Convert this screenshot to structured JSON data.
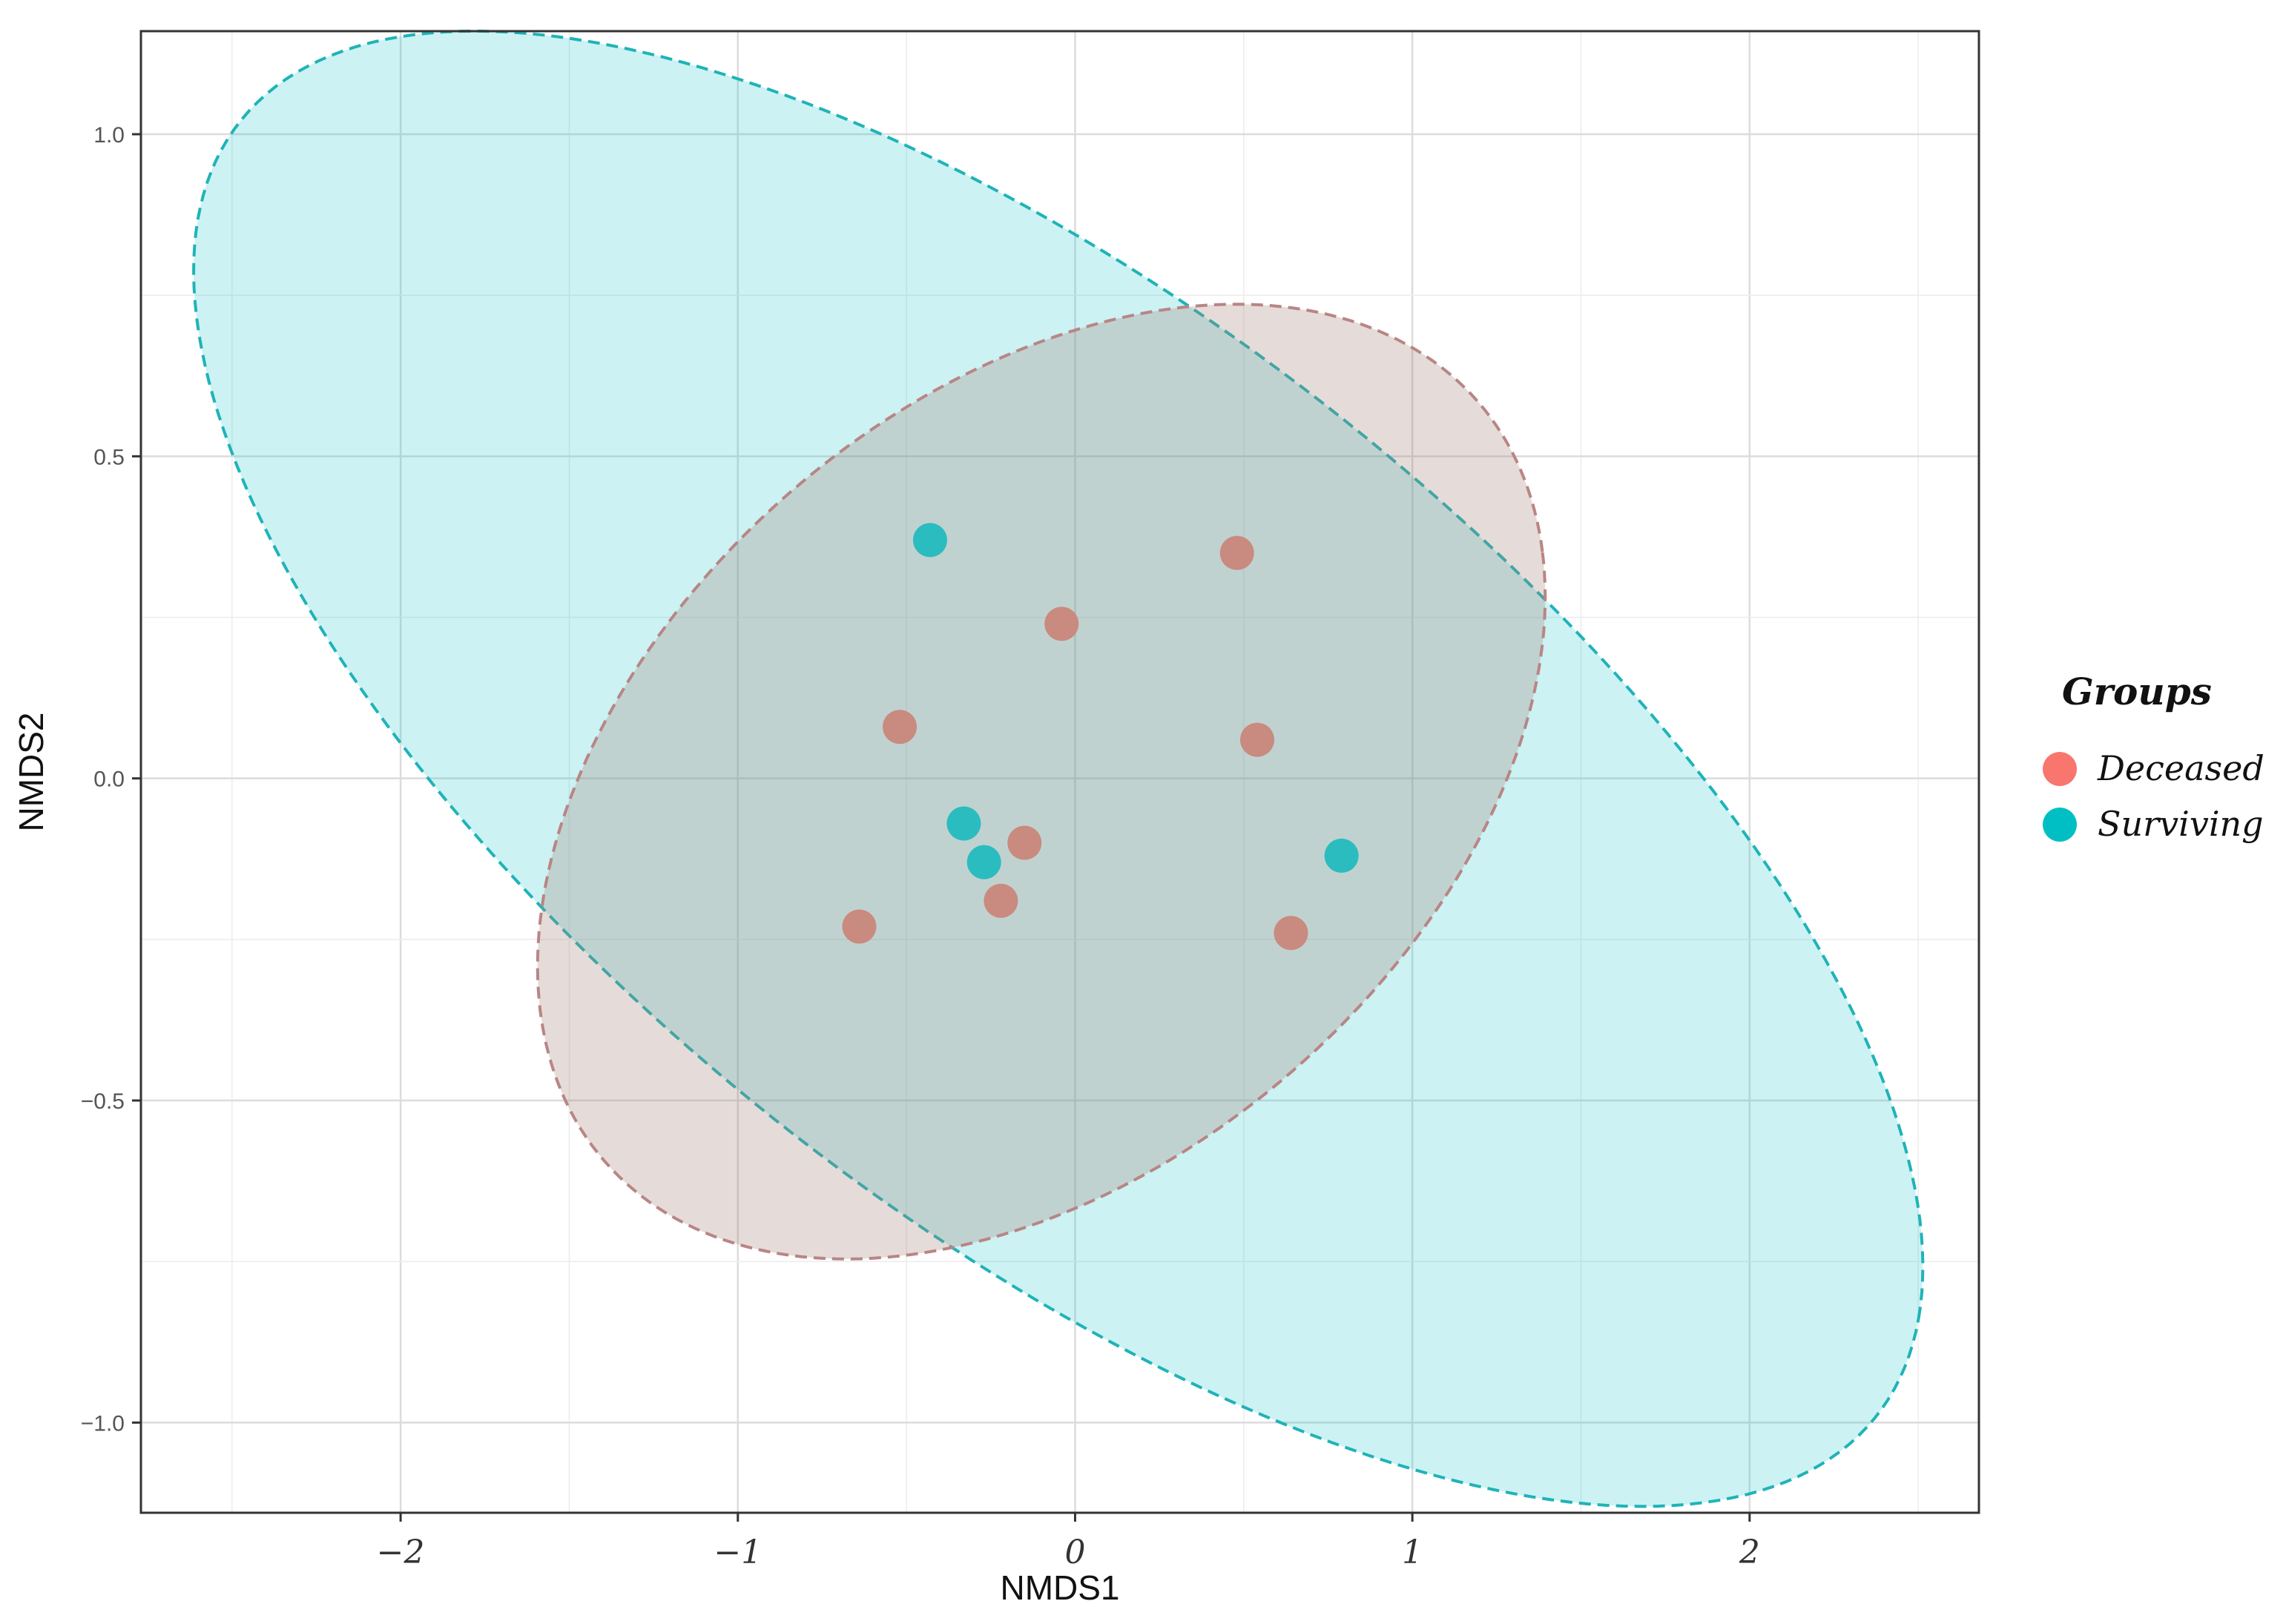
{
  "chart_data": {
    "type": "scatter",
    "title": "",
    "xlabel": "NMDS1",
    "ylabel": "NMDS2",
    "xlim": [
      -2.77,
      2.68
    ],
    "ylim": [
      -1.14,
      1.16
    ],
    "x_ticks": [
      -2,
      -1,
      0,
      1,
      2
    ],
    "x_tick_labels": [
      "−2",
      "−1",
      "0",
      "1",
      "2"
    ],
    "y_ticks": [
      -1.0,
      -0.5,
      0.0,
      0.5,
      1.0
    ],
    "y_tick_labels": [
      "−1.0",
      "−0.5",
      "0.0",
      "0.5",
      "1.0"
    ],
    "grid": true,
    "legend": {
      "title": "Groups",
      "placement": "right",
      "entries": [
        "Deceased",
        "Surviving"
      ]
    },
    "series": [
      {
        "name": "Deceased",
        "color": "#F8766D",
        "points": [
          {
            "x": -0.04,
            "y": 0.24
          },
          {
            "x": 0.48,
            "y": 0.35
          },
          {
            "x": -0.52,
            "y": 0.08
          },
          {
            "x": 0.54,
            "y": 0.06
          },
          {
            "x": -0.15,
            "y": -0.1
          },
          {
            "x": -0.22,
            "y": -0.19
          },
          {
            "x": -0.64,
            "y": -0.23
          },
          {
            "x": 0.64,
            "y": -0.24
          }
        ],
        "ellipse": {
          "center": [
            -0.1,
            -0.005
          ],
          "rx": 1.528,
          "ry": 0.668,
          "angle_deg": 13.5
        }
      },
      {
        "name": "Surviving",
        "color": "#00BFC4",
        "points": [
          {
            "x": -0.43,
            "y": 0.37
          },
          {
            "x": -0.33,
            "y": -0.07
          },
          {
            "x": -0.27,
            "y": -0.13
          },
          {
            "x": 0.79,
            "y": -0.12
          }
        ],
        "ellipse": {
          "center": [
            -0.05,
            0.015
          ],
          "rx": 2.69,
          "ry": 0.805,
          "angle_deg": -18.5
        }
      }
    ]
  }
}
